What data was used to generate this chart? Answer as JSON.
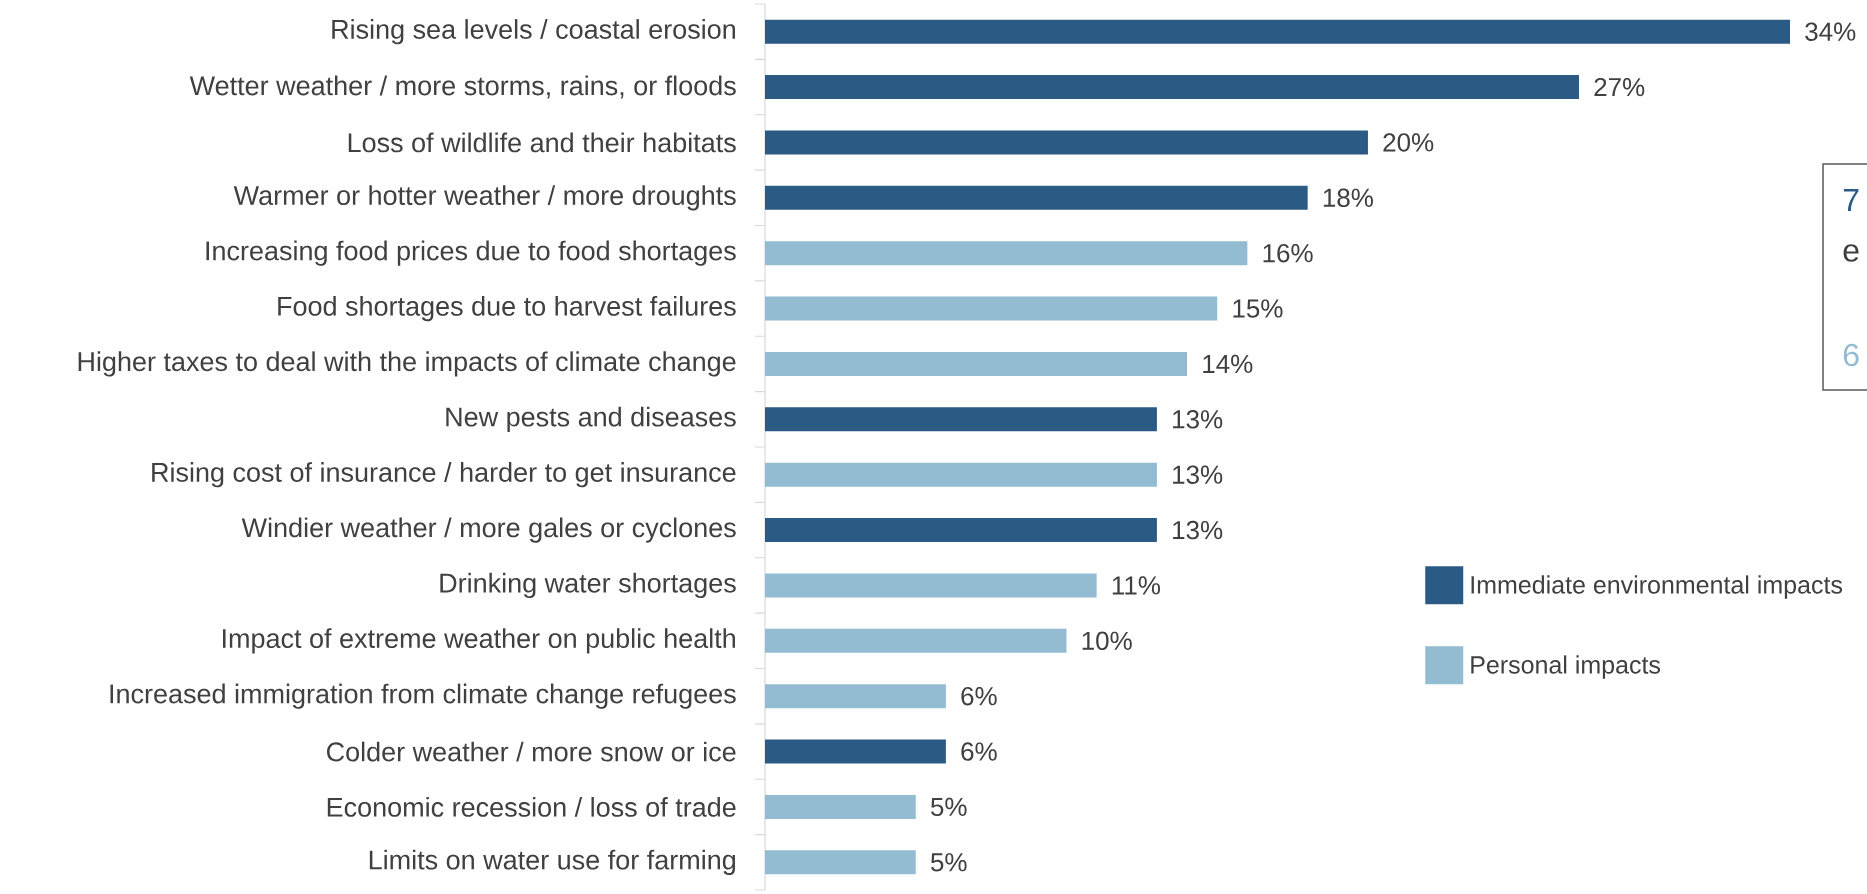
{
  "chart_data": {
    "type": "bar",
    "orientation": "horizontal",
    "categories": [
      "Rising sea levels / coastal erosion",
      "Wetter weather / more storms, rains, or floods",
      "Loss of wildlife and their habitats",
      "Warmer or hotter weather / more droughts",
      "Increasing food prices due to food shortages",
      "Food shortages due to harvest failures",
      "Higher taxes to deal with the impacts of climate change",
      "New pests and diseases",
      "Rising cost of insurance / harder to get insurance",
      "Windier weather / more gales or cyclones",
      "Drinking water shortages",
      "Impact of extreme weather on public health",
      "Increased immigration from climate change refugees",
      "Colder weather / more snow or ice",
      "Economic recession / loss of trade",
      "Limits on water use for farming"
    ],
    "series": [
      {
        "name": "Immediate environmental impacts",
        "color": "#2b5a84",
        "values": [
          34,
          27,
          20,
          18,
          null,
          null,
          null,
          13,
          null,
          13,
          null,
          null,
          null,
          6,
          null,
          null
        ],
        "value_labels": [
          "34%",
          "27%",
          "20%",
          "18%",
          null,
          null,
          null,
          "13%",
          null,
          "13%",
          null,
          null,
          null,
          "6%",
          null,
          null
        ]
      },
      {
        "name": "Personal impacts",
        "color": "#93bbd1",
        "values": [
          null,
          null,
          null,
          null,
          16,
          15,
          14,
          null,
          13,
          null,
          11,
          10,
          6,
          null,
          5,
          5
        ],
        "value_labels": [
          null,
          null,
          null,
          null,
          "16%",
          "15%",
          "14%",
          null,
          "13%",
          null,
          "11%",
          "10%",
          "6%",
          null,
          "5%",
          "5%"
        ]
      }
    ],
    "legend": "right",
    "annotations": [
      "7",
      "e",
      "6"
    ]
  }
}
